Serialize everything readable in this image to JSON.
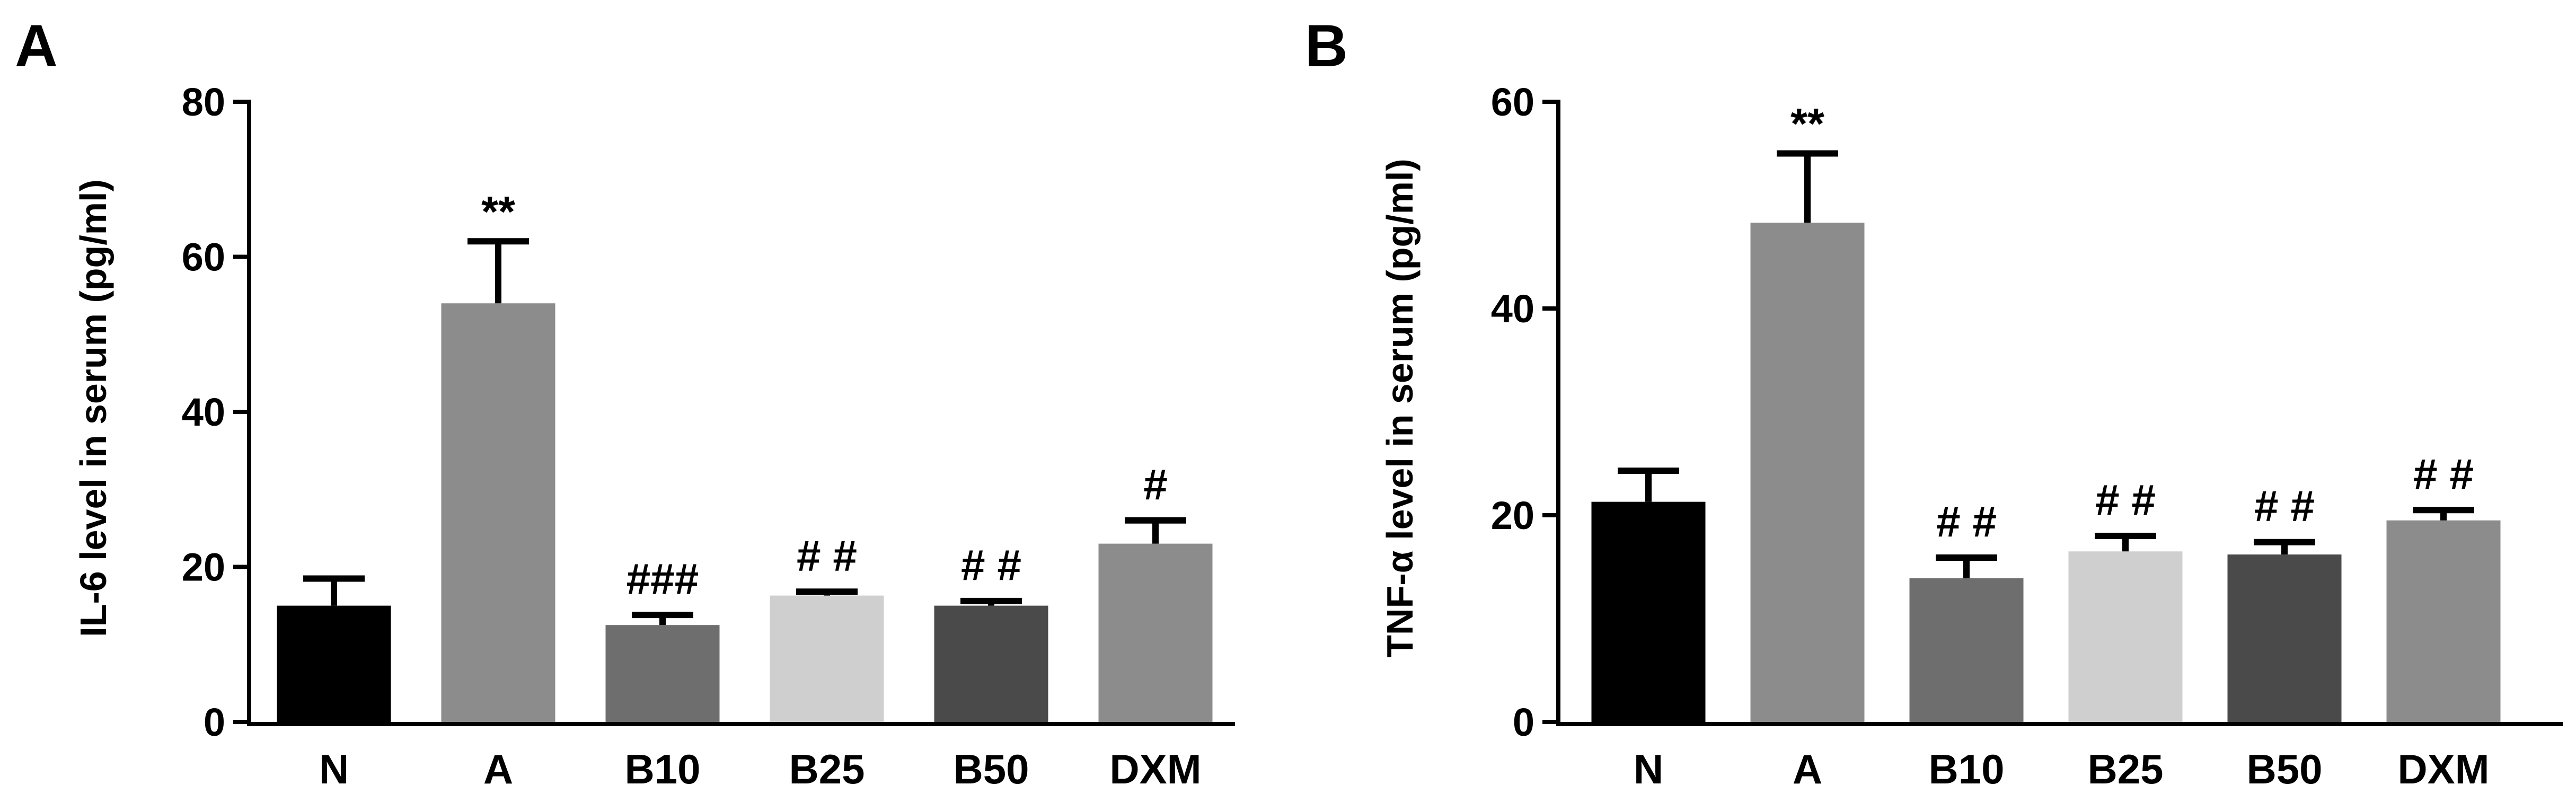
{
  "chart_data": [
    {
      "panel": "A",
      "type": "bar",
      "ylabel": "IL-6 level in serum (pg/ml)",
      "xlabel": "",
      "ylim": [
        0,
        80
      ],
      "yticks": [
        "0",
        "20",
        "40",
        "60",
        "80"
      ],
      "categories": [
        "N",
        "A",
        "B10",
        "B25",
        "B50",
        "DXM"
      ],
      "values": [
        15,
        54,
        12.5,
        16.3,
        15,
        23
      ],
      "errors": [
        3.5,
        8,
        1.3,
        0.5,
        0.6,
        3
      ],
      "annotations": [
        "",
        "**",
        "###",
        "# #",
        "# #",
        "#"
      ],
      "colors": [
        "#000000",
        "#8c8c8c",
        "#6e6e6e",
        "#cfcfcf",
        "#4a4a4a",
        "#8c8c8c"
      ],
      "grid": false
    },
    {
      "panel": "B",
      "type": "bar",
      "ylabel": "TNF-α level in serum (pg/ml)",
      "xlabel": "",
      "ylim": [
        0,
        60
      ],
      "yticks": [
        "0",
        "20",
        "40",
        "60"
      ],
      "categories": [
        "N",
        "A",
        "B10",
        "B25",
        "B50",
        "DXM"
      ],
      "values": [
        21.3,
        48.3,
        13.9,
        16.5,
        16.2,
        19.5
      ],
      "errors": [
        3,
        6.7,
        2,
        1.5,
        1.2,
        1
      ],
      "annotations": [
        "",
        "**",
        "# #",
        "# #",
        "# #",
        "# #"
      ],
      "colors": [
        "#000000",
        "#8c8c8c",
        "#6e6e6e",
        "#cfcfcf",
        "#4a4a4a",
        "#8c8c8c"
      ],
      "grid": false
    }
  ]
}
